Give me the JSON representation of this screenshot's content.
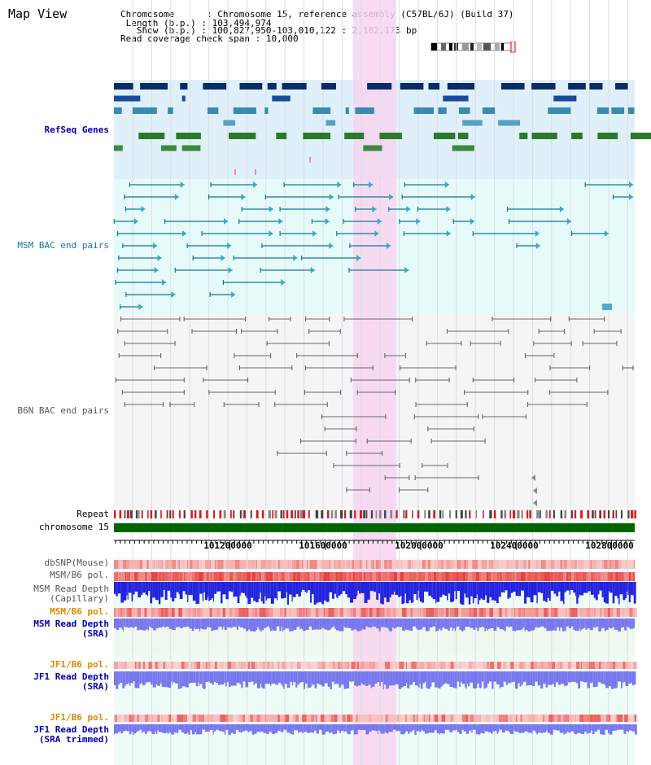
{
  "page": {
    "title": "Map View"
  },
  "info": {
    "chromosome_key": "Chromosome",
    "chromosome_val": "Chromosome 15, reference assembly (C57BL/6J) (Build 37)",
    "length_key": "Length (b.p.)",
    "length_val": "103,494,974",
    "show_key": "Show (b.p.)",
    "show_val": "100,827,950-103,010,122 : 2,182,173 bp",
    "span_key": "Read coverage check span",
    "span_val": "10,000"
  },
  "tracks": {
    "refseq": "RefSeq Genes",
    "msm_bac": "MSM BAC end pairs",
    "b6n_bac": "B6N BAC end pairs",
    "repeat": "Repeat",
    "chromosome": "chromosome 15",
    "dbsnp": "dbSNP(Mouse)",
    "msm_b6_pol_1": "MSM/B6 pol.",
    "msm_depth_cap_1": "MSM Read Depth",
    "msm_depth_cap_2": "(Capillary)",
    "msm_b6_pol_2": "MSM/B6 pol.",
    "msm_depth_sra_1": "MSM Read Depth",
    "msm_depth_sra_2": "(SRA)",
    "jf1_pol_1": "JF1/B6 pol.",
    "jf1_depth_1": "JF1 Read Depth",
    "jf1_depth_2": "(SRA)",
    "jf1_pol_2": "JF1/B6 pol.",
    "jf1_trim_1": "JF1 Read Depth",
    "jf1_trim_2": "(SRA trimmed)"
  },
  "axis": {
    "ticks": [
      "101200000",
      "101600000",
      "102000000",
      "102400000",
      "102800000"
    ],
    "range": [
      100827950,
      103010122
    ]
  },
  "colors": {
    "refseq_bg": "#dff0fa",
    "bac_bg": "#e6fafa",
    "highlight": "#f7d5f0",
    "chromosome": "#006600",
    "depth_blue": "#2222dd",
    "depth_light": "#7777ee"
  }
}
